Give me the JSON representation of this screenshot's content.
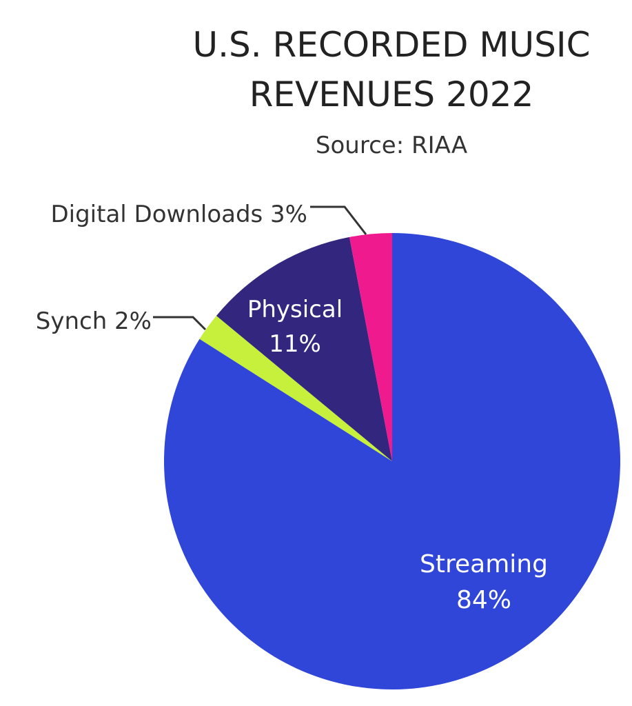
{
  "chart_data": {
    "type": "pie",
    "title_lines": [
      "U.S. RECORDED MUSIC",
      "REVENUES 2022"
    ],
    "subtitle": "Source: RIAA",
    "slices": [
      {
        "label": "Streaming",
        "value": 84,
        "value_label": "84%",
        "color": "#2f46d8",
        "label_position": "inside"
      },
      {
        "label": "Synch",
        "value": 2,
        "value_label": "2%",
        "color": "#c6f03c",
        "label_position": "outside",
        "outside_text": "Synch 2%"
      },
      {
        "label": "Physical",
        "value": 11,
        "value_label": "11%",
        "color": "#33267f",
        "label_position": "inside"
      },
      {
        "label": "Digital Downloads",
        "value": 3,
        "value_label": "3%",
        "color": "#ef1a8e",
        "label_position": "outside",
        "outside_text": "Digital Downloads 3%"
      }
    ]
  }
}
